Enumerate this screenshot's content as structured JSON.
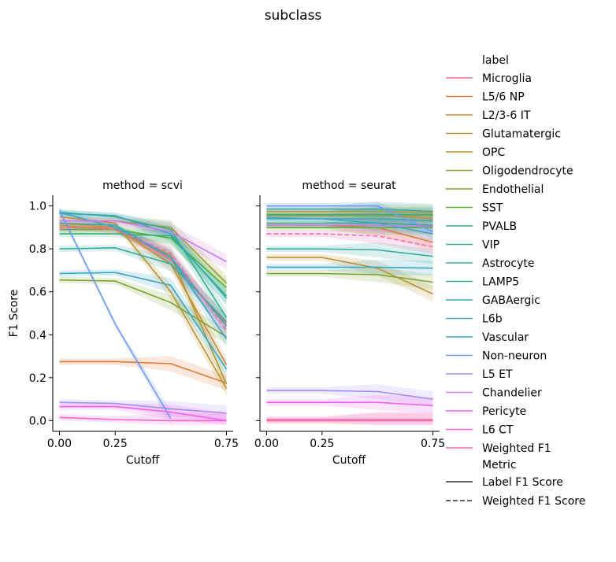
{
  "figure": {
    "suptitle": "subclass"
  },
  "legend": {
    "label_title": "label",
    "metric_title": "Metric",
    "metric_entries": [
      {
        "name": "Label F1 Score",
        "dash": "solid"
      },
      {
        "name": "Weighted F1 Score",
        "dash": "dashed"
      }
    ]
  },
  "chart_data": {
    "type": "line",
    "x": [
      0.0,
      0.25,
      0.5,
      0.75
    ],
    "xlabel": "Cutoff",
    "ylabel": "F1 Score",
    "xlim": [
      -0.03,
      0.78
    ],
    "ylim": [
      -0.05,
      1.05
    ],
    "xticks": [
      "0.00",
      "0.25",
      "0.75"
    ],
    "yticks": [
      "0.0",
      "0.2",
      "0.4",
      "0.6",
      "0.8",
      "1.0"
    ],
    "grid": false,
    "legend_position": "right",
    "series_colors": {
      "Microglia": "#f77189",
      "L5/6 NP": "#e7793a",
      "L2/3-6 IT": "#cd8832",
      "Glutamatergic": "#bb9332",
      "OPC": "#ac9932",
      "Oligodendrocyte": "#9c9d32",
      "Endothelial": "#7da432",
      "SST": "#50b132",
      "PVALB": "#33b07a",
      "VIP": "#34ae91",
      "Astrocyte": "#35ac9d",
      "LAMP5": "#36aaa9",
      "GABAergic": "#38a8b6",
      "L6b": "#3aa5c5",
      "Vascular": "#3ba3d1",
      "Non-neuron": "#6e9bf4",
      "L5 ET": "#a48cf4",
      "Chandelier": "#cc7af4",
      "Pericyte": "#f45cf2",
      "L6 CT": "#f565cc",
      "Weighted F1": "#f66bad"
    },
    "panels": [
      {
        "title": "method = scvi",
        "series": [
          {
            "name": "Microglia",
            "values": [
              0.9,
              0.9,
              0.75,
              0.45
            ]
          },
          {
            "name": "L5/6 NP",
            "values": [
              0.275,
              0.275,
              0.265,
              0.175
            ]
          },
          {
            "name": "L2/3-6 IT",
            "values": [
              0.92,
              0.9,
              0.73,
              0.26
            ]
          },
          {
            "name": "Glutamatergic",
            "values": [
              0.95,
              0.92,
              0.6,
              0.15
            ]
          },
          {
            "name": "OPC",
            "values": [
              0.91,
              0.89,
              0.77,
              0.17
            ]
          },
          {
            "name": "Oligodendrocyte",
            "values": [
              0.93,
              0.93,
              0.9,
              0.64
            ]
          },
          {
            "name": "Endothelial",
            "values": [
              0.655,
              0.65,
              0.55,
              0.39
            ]
          },
          {
            "name": "SST",
            "values": [
              0.89,
              0.89,
              0.85,
              0.62
            ]
          },
          {
            "name": "PVALB",
            "values": [
              0.87,
              0.87,
              0.86,
              0.58
            ]
          },
          {
            "name": "VIP",
            "values": [
              0.97,
              0.95,
              0.89,
              0.48
            ]
          },
          {
            "name": "Astrocyte",
            "values": [
              0.8,
              0.805,
              0.73,
              0.46
            ]
          },
          {
            "name": "LAMP5",
            "values": [
              0.92,
              0.91,
              0.76,
              0.44
            ]
          },
          {
            "name": "GABAergic",
            "values": [
              0.965,
              0.955,
              0.87,
              0.57
            ]
          },
          {
            "name": "L6b",
            "values": [
              0.685,
              0.69,
              0.63,
              0.24
            ]
          },
          {
            "name": "Vascular",
            "values": [
              0.97,
              0.9,
              0.76,
              0.38
            ]
          },
          {
            "name": "Non-neuron",
            "values": [
              0.98,
              0.45,
              0.01,
              null
            ]
          },
          {
            "name": "L5 ET",
            "values": [
              0.085,
              0.08,
              0.055,
              0.035
            ]
          },
          {
            "name": "Chandelier",
            "values": [
              0.93,
              0.93,
              0.88,
              0.74
            ]
          },
          {
            "name": "Pericyte",
            "values": [
              0.065,
              0.065,
              0.04,
              0.0
            ]
          },
          {
            "name": "L6 CT",
            "values": [
              0.015,
              0.005,
              0.0,
              0.0
            ]
          },
          {
            "name": "Weighted F1",
            "values": [
              0.9,
              0.89,
              0.78,
              0.42
            ]
          }
        ]
      },
      {
        "title": "method = seurat",
        "series": [
          {
            "name": "Microglia",
            "values": [
              0.0,
              0.0,
              0.0,
              0.0
            ]
          },
          {
            "name": "L5/6 NP",
            "values": [
              0.91,
              0.91,
              0.9,
              0.83
            ]
          },
          {
            "name": "L2/3-6 IT",
            "values": [
              0.96,
              0.96,
              0.96,
              0.94
            ]
          },
          {
            "name": "Glutamatergic",
            "values": [
              0.76,
              0.76,
              0.71,
              0.59
            ]
          },
          {
            "name": "OPC",
            "values": [
              0.975,
              0.975,
              0.975,
              0.97
            ]
          },
          {
            "name": "Oligodendrocyte",
            "values": [
              0.955,
              0.955,
              0.955,
              0.955
            ]
          },
          {
            "name": "Endothelial",
            "values": [
              0.685,
              0.685,
              0.68,
              0.645
            ]
          },
          {
            "name": "SST",
            "values": [
              0.9,
              0.9,
              0.9,
              0.9
            ]
          },
          {
            "name": "PVALB",
            "values": [
              0.92,
              0.92,
              0.92,
              0.91
            ]
          },
          {
            "name": "VIP",
            "values": [
              0.96,
              0.96,
              0.96,
              0.96
            ]
          },
          {
            "name": "Astrocyte",
            "values": [
              0.8,
              0.8,
              0.795,
              0.765
            ]
          },
          {
            "name": "LAMP5",
            "values": [
              0.94,
              0.94,
              0.94,
              0.93
            ]
          },
          {
            "name": "GABAergic",
            "values": [
              0.985,
              0.985,
              0.985,
              0.975
            ]
          },
          {
            "name": "L6b",
            "values": [
              0.715,
              0.715,
              0.715,
              0.71
            ]
          },
          {
            "name": "Vascular",
            "values": [
              0.945,
              0.94,
              0.92,
              0.87
            ]
          },
          {
            "name": "Non-neuron",
            "values": [
              1.0,
              1.0,
              1.0,
              0.88
            ]
          },
          {
            "name": "L5 ET",
            "values": [
              0.14,
              0.14,
              0.135,
              0.1
            ]
          },
          {
            "name": "Chandelier",
            "values": [
              0.91,
              0.91,
              0.91,
              0.905
            ]
          },
          {
            "name": "Pericyte",
            "values": [
              0.085,
              0.085,
              0.085,
              0.07
            ]
          },
          {
            "name": "L6 CT",
            "values": [
              0.005,
              0.005,
              0.005,
              0.005
            ]
          },
          {
            "name": "Weighted F1",
            "values": [
              0.87,
              0.87,
              0.86,
              0.81
            ]
          }
        ]
      }
    ]
  }
}
